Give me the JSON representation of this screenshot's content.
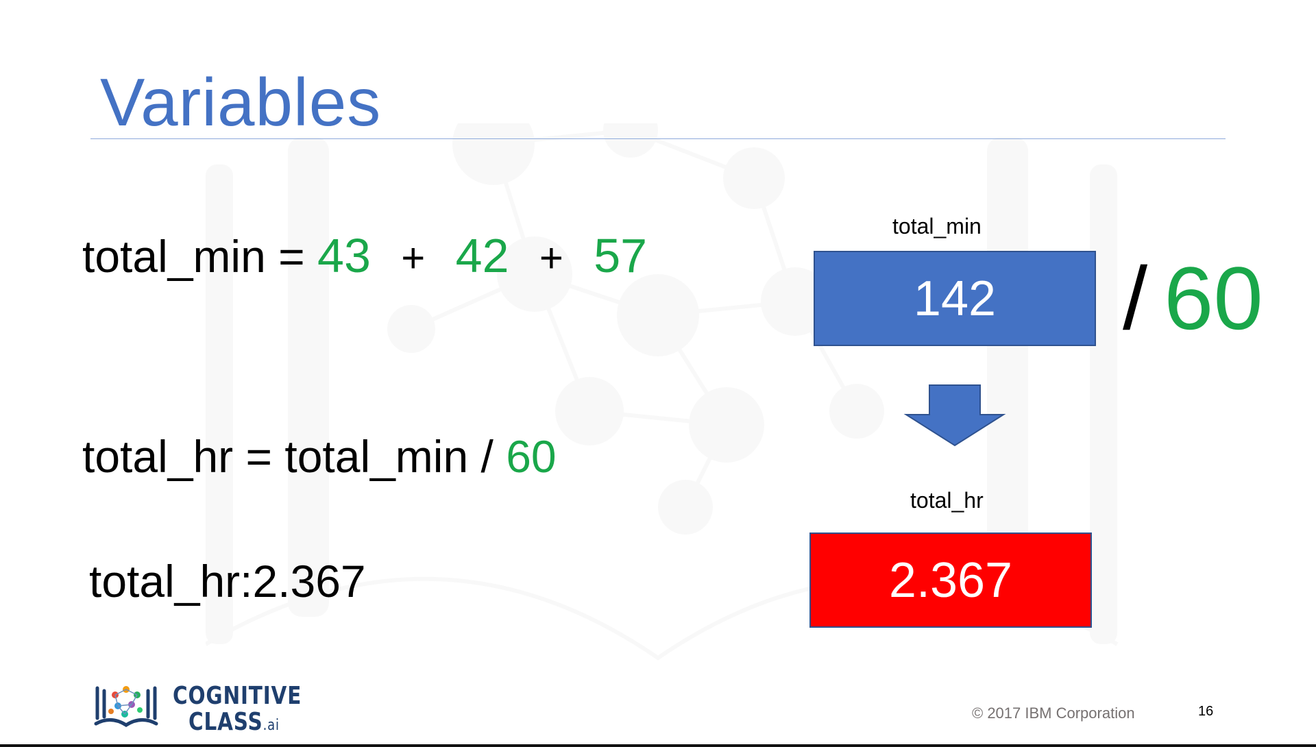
{
  "slide": {
    "title": "Variables",
    "page_number": "16",
    "copyright": "© 2017 IBM Corporation"
  },
  "equations": {
    "line1": {
      "lhs": "total_min =",
      "terms": [
        "43",
        "42",
        "57"
      ],
      "operator": "+"
    },
    "line2": {
      "lhs": "total_hr = total_min /",
      "divisor": "60"
    },
    "line3": {
      "text": "total_hr:2.367"
    }
  },
  "diagram": {
    "top_label": "total_min",
    "top_value": "142",
    "divide_symbol": "/",
    "divide_value": "60",
    "bottom_label": "total_hr",
    "bottom_value": "2.367"
  },
  "logo": {
    "line1": "COGNITIVE",
    "line2": "CLASS",
    "suffix": ".ai"
  },
  "colors": {
    "title": "#4472c4",
    "number_green": "#1aa74a",
    "box_blue": "#4472c4",
    "box_red": "#ff0000",
    "logo_navy": "#1f3f6e"
  }
}
